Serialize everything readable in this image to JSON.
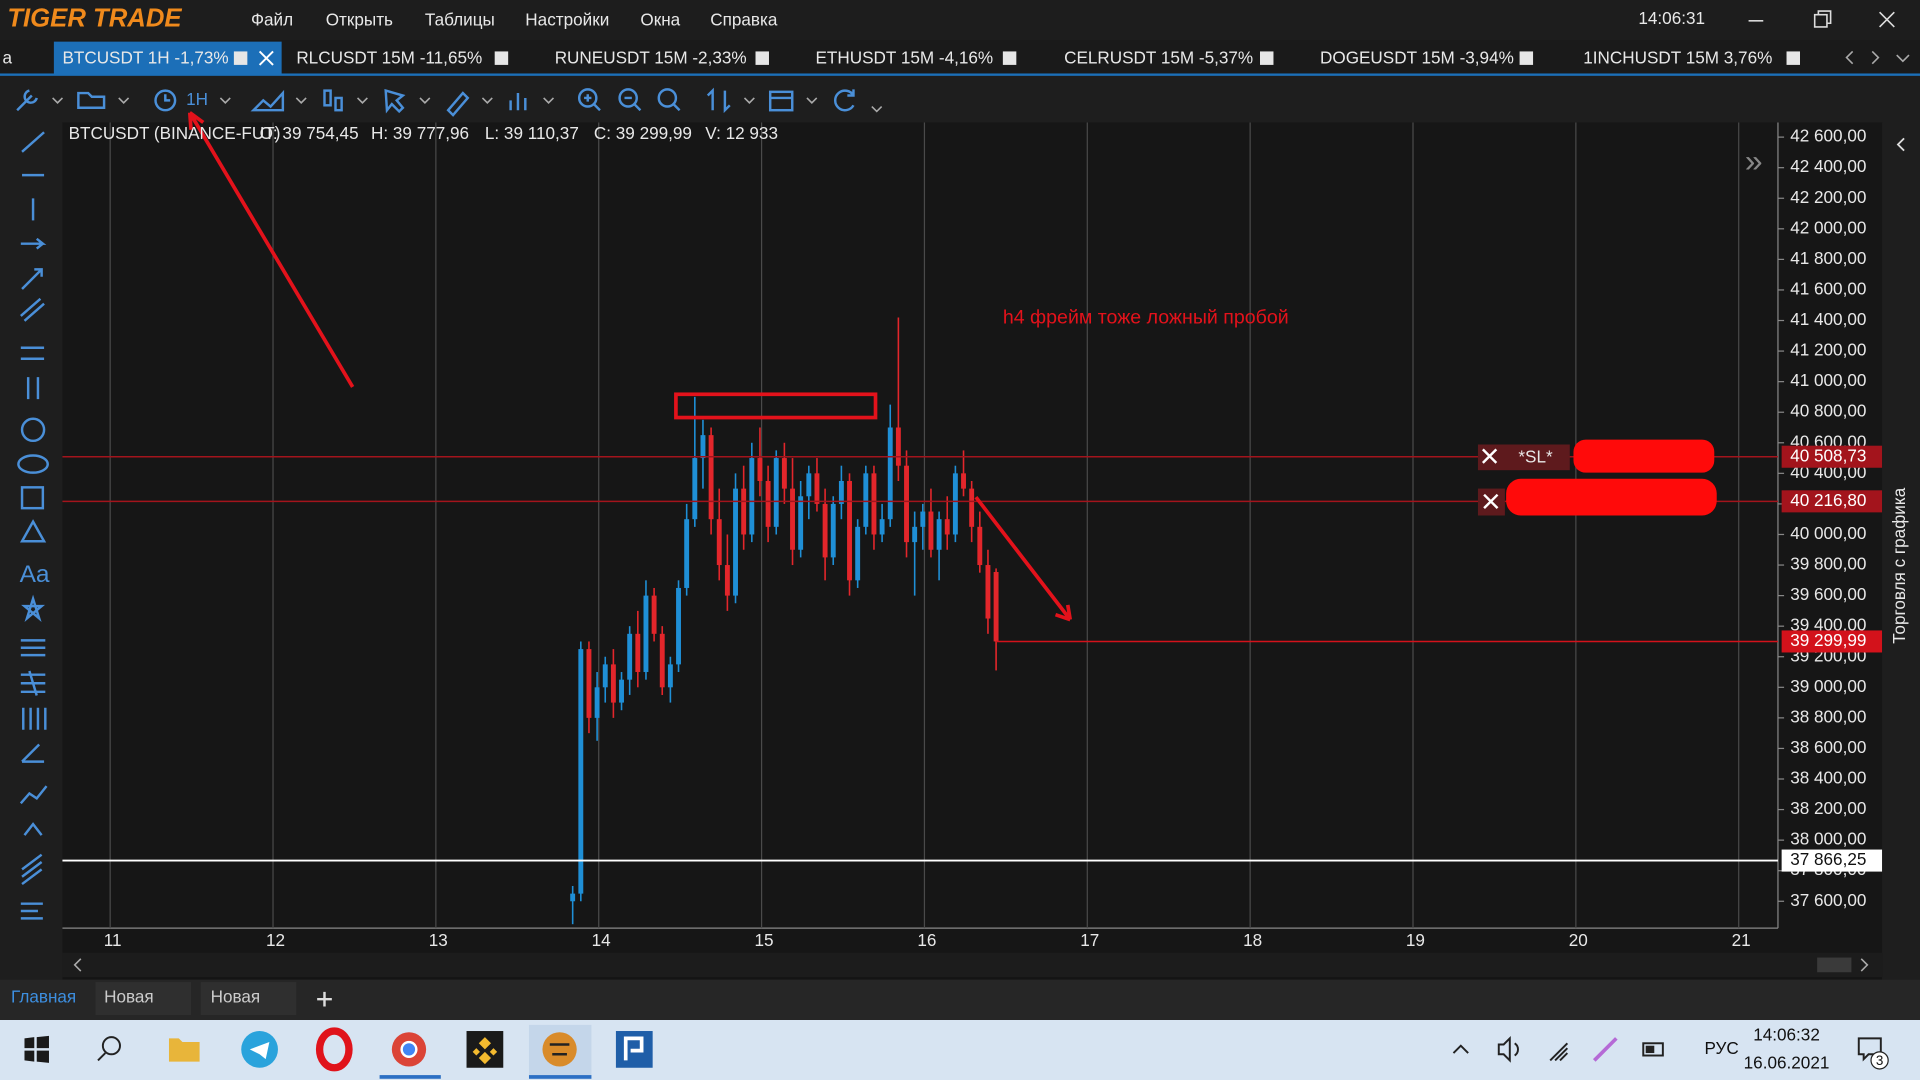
{
  "app": {
    "logo": "TIGER TRADE",
    "menu": [
      "Файл",
      "Открыть",
      "Таблицы",
      "Настройки",
      "Окна",
      "Справка"
    ],
    "clock": "14:06:31"
  },
  "tabs": [
    "a",
    "BTCUSDT 1H -1,73%",
    "RLCUSDT 15M -11,65%",
    "RUNEUSDT 15M -2,33%",
    "ETHUSDT 15M -4,16%",
    "CELRUSDT 15M -5,37%",
    "DOGEUSDT 15M -3,94%",
    "1INCHUSDT 15M 3,76%"
  ],
  "toolbar_interval": "1H",
  "info": [
    "BTCUSDT (BINANCE-FUT)",
    "O: 39 754,45",
    "H: 39 777,96",
    "L: 39 110,37",
    "C: 39 299,99",
    "V: 12 933"
  ],
  "chart_data": {
    "type": "candlestick",
    "annotation": "h4 фрейм тоже ложный пробой",
    "up_color": "#1f8fd6",
    "down_color": "#e3262b",
    "x": [
      13.84,
      13.89,
      13.94,
      13.99,
      14.04,
      14.09,
      14.14,
      14.19,
      14.24,
      14.29,
      14.34,
      14.39,
      14.44,
      14.49,
      14.54,
      14.59,
      14.64,
      14.69,
      14.74,
      14.79,
      14.84,
      14.89,
      14.94,
      14.99,
      15.04,
      15.09,
      15.14,
      15.19,
      15.24,
      15.29,
      15.34,
      15.39,
      15.44,
      15.49,
      15.54,
      15.59,
      15.64,
      15.69,
      15.74,
      15.79,
      15.84,
      15.89,
      15.94,
      15.99,
      16.04,
      16.09,
      16.14,
      16.19,
      16.24,
      16.29,
      16.34,
      16.39,
      16.44
    ],
    "ohlc": [
      [
        37600,
        37700,
        37450,
        37650
      ],
      [
        37650,
        39300,
        37600,
        39250
      ],
      [
        39250,
        39300,
        38700,
        38800
      ],
      [
        38800,
        39100,
        38650,
        39000
      ],
      [
        39000,
        39200,
        38900,
        39150
      ],
      [
        39150,
        39250,
        38800,
        38900
      ],
      [
        38900,
        39100,
        38850,
        39050
      ],
      [
        39050,
        39400,
        38950,
        39350
      ],
      [
        39350,
        39500,
        39000,
        39100
      ],
      [
        39100,
        39700,
        39050,
        39600
      ],
      [
        39600,
        39650,
        39300,
        39350
      ],
      [
        39350,
        39400,
        38950,
        39000
      ],
      [
        39000,
        39200,
        38900,
        39150
      ],
      [
        39150,
        39700,
        39100,
        39650
      ],
      [
        39650,
        40200,
        39600,
        40100
      ],
      [
        40100,
        40900,
        40050,
        40500
      ],
      [
        40500,
        40750,
        40300,
        40650
      ],
      [
        40650,
        40700,
        40000,
        40100
      ],
      [
        40100,
        40300,
        39700,
        39800
      ],
      [
        39800,
        40000,
        39500,
        39600
      ],
      [
        39600,
        40400,
        39550,
        40300
      ],
      [
        40300,
        40450,
        39900,
        40000
      ],
      [
        40000,
        40600,
        39950,
        40500
      ],
      [
        40500,
        40700,
        40250,
        40350
      ],
      [
        40350,
        40450,
        39950,
        40050
      ],
      [
        40050,
        40550,
        40000,
        40500
      ],
      [
        40500,
        40600,
        40200,
        40300
      ],
      [
        40300,
        40500,
        39800,
        39900
      ],
      [
        39900,
        40350,
        39850,
        40250
      ],
      [
        40250,
        40450,
        40100,
        40400
      ],
      [
        40400,
        40500,
        40150,
        40200
      ],
      [
        40200,
        40300,
        39700,
        39850
      ],
      [
        39850,
        40250,
        39800,
        40200
      ],
      [
        40200,
        40450,
        40100,
        40350
      ],
      [
        40350,
        40400,
        39600,
        39700
      ],
      [
        39700,
        40100,
        39650,
        40050
      ],
      [
        40050,
        40450,
        40000,
        40400
      ],
      [
        40400,
        40450,
        39900,
        40000
      ],
      [
        40000,
        40200,
        39950,
        40100
      ],
      [
        40100,
        40850,
        40050,
        40700
      ],
      [
        40700,
        41420,
        40350,
        40450
      ],
      [
        40450,
        40550,
        39850,
        39950
      ],
      [
        39950,
        40150,
        39600,
        40050
      ],
      [
        40050,
        40200,
        39900,
        40150
      ],
      [
        40150,
        40300,
        39850,
        39900
      ],
      [
        39900,
        40150,
        39700,
        40100
      ],
      [
        40100,
        40250,
        39900,
        40000
      ],
      [
        40000,
        40450,
        39950,
        40400
      ],
      [
        40400,
        40550,
        40250,
        40300
      ],
      [
        40300,
        40350,
        39950,
        40050
      ],
      [
        40050,
        40150,
        39750,
        39800
      ],
      [
        39800,
        39900,
        39350,
        39450
      ],
      [
        39754.45,
        39777.96,
        39110.37,
        39299.99
      ]
    ],
    "xlim": [
      10.707,
      21.241
    ],
    "ylim": [
      37424,
      42696
    ],
    "xticks": [
      11,
      12,
      13,
      14,
      15,
      16,
      17,
      18,
      19,
      20,
      21
    ],
    "yticks": [
      {
        "value": 42600,
        "label": "42 600,00"
      },
      {
        "value": 42400,
        "label": "42 400,00"
      },
      {
        "value": 42200,
        "label": "42 200,00"
      },
      {
        "value": 42000,
        "label": "42 000,00"
      },
      {
        "value": 41800,
        "label": "41 800,00"
      },
      {
        "value": 41600,
        "label": "41 600,00"
      },
      {
        "value": 41400,
        "label": "41 400,00"
      },
      {
        "value": 41200,
        "label": "41 200,00"
      },
      {
        "value": 41000,
        "label": "41 000,00"
      },
      {
        "value": 40800,
        "label": "40 800,00"
      },
      {
        "value": 40600,
        "label": "40 600,00"
      },
      {
        "value": 40400,
        "label": "40 400,00"
      },
      {
        "value": 40200,
        "label": "40 200,00"
      },
      {
        "value": 40000,
        "label": "40 000,00"
      },
      {
        "value": 39800,
        "label": "39 800,00"
      },
      {
        "value": 39600,
        "label": "39 600,00"
      },
      {
        "value": 39400,
        "label": "39 400,00"
      },
      {
        "value": 39200,
        "label": "39 200,00"
      },
      {
        "value": 39000,
        "label": "39 000,00"
      },
      {
        "value": 38800,
        "label": "38 800,00"
      },
      {
        "value": 38600,
        "label": "38 600,00"
      },
      {
        "value": 38400,
        "label": "38 400,00"
      },
      {
        "value": 38200,
        "label": "38 200,00"
      },
      {
        "value": 38000,
        "label": "38 000,00"
      },
      {
        "value": 37800,
        "label": "37 800,00"
      },
      {
        "value": 37600,
        "label": "37 600,00"
      }
    ],
    "price_lines": [
      {
        "value": 40508.73,
        "label": "40 508,73",
        "color": "#a3141c"
      },
      {
        "value": 40216.8,
        "label": "40 216,80",
        "color": "#a3141c"
      },
      {
        "value": 39299.99,
        "label": "39 299,99",
        "color": "#d3121b"
      },
      {
        "value": 37866.25,
        "label": "37 866,25",
        "color": "#ffffff"
      }
    ],
    "order_tag": "*SL*",
    "side_label": "Торговля с графика"
  },
  "bottom_tabs": [
    "Главная",
    "Новая",
    "Новая"
  ],
  "taskbar": {
    "lang": "РУС",
    "time": "14:06:32",
    "date": "16.06.2021",
    "badge": "3"
  }
}
